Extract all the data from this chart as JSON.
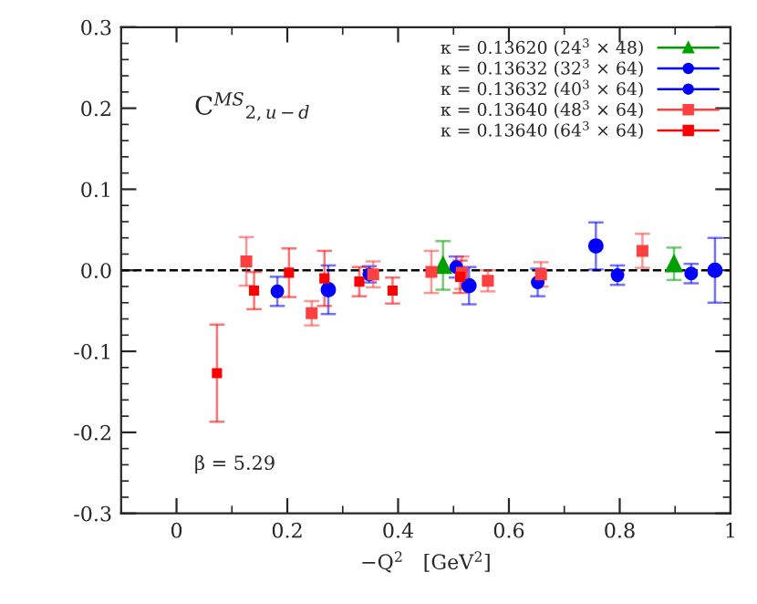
{
  "chart_data": {
    "type": "scatter",
    "xlabel": "−Q$^{2}$   [GeV$^{2}$]",
    "xlim": [
      -0.1,
      1
    ],
    "xticks": [
      0,
      0.2,
      0.4,
      0.6,
      0.8,
      1
    ],
    "ylim": [
      -0.3,
      0.3
    ],
    "yticks": [
      -0.3,
      -0.2,
      -0.1,
      {
        "value": 0,
        "label": "0.0"
      },
      0.1,
      0.2,
      0.3
    ],
    "grid": false,
    "legend": "top right",
    "ref_lines": [
      {
        "axis": "y",
        "value": 0,
        "color": "#000000",
        "line_style": "dashed"
      }
    ],
    "annotations": [
      "C$^{MS}$$_{2,u−d}$",
      "β = 5.29"
    ],
    "series": [
      {
        "name": "κ = 0.13620 (24$^{3}$ × 48)",
        "color": "#00a000",
        "marker": "triangle",
        "x": [
          0.481,
          0.898
        ],
        "values": [
          0.006,
          0.008
        ],
        "errors": [
          0.03,
          0.02
        ]
      },
      {
        "name": "κ = 0.13632 (32$^{3}$ × 64)",
        "color": "#0000ff",
        "marker": "circle",
        "x": [
          0.274,
          0.528,
          0.757,
          0.972
        ],
        "values": [
          -0.024,
          -0.019,
          0.03,
          0.0
        ],
        "errors": [
          0.03,
          0.023,
          0.029,
          0.04
        ]
      },
      {
        "name": "κ = 0.13632 (40$^{3}$ × 64)",
        "color": "#0000ff",
        "marker": "circle",
        "x": [
          0.182,
          0.348,
          0.505,
          0.652,
          0.796,
          0.929
        ],
        "values": [
          -0.026,
          -0.005,
          0.004,
          -0.015,
          -0.006,
          -0.004
        ],
        "errors": [
          0.018,
          0.01,
          0.013,
          0.017,
          0.012,
          0.012
        ]
      },
      {
        "name": "κ = 0.13640 (48$^{3}$ × 64)",
        "color": "#ff4040",
        "marker": "square",
        "x": [
          0.126,
          0.244,
          0.355,
          0.46,
          0.515,
          0.562,
          0.658,
          0.841
        ],
        "values": [
          0.011,
          -0.053,
          -0.005,
          -0.002,
          -0.003,
          -0.013,
          -0.005,
          0.024
        ],
        "errors": [
          0.03,
          0.015,
          0.016,
          0.026,
          0.02,
          0.013,
          0.015,
          0.021
        ]
      },
      {
        "name": "κ = 0.13640 (64$^{3}$ × 64)",
        "color": "#ff0000",
        "marker": "square",
        "x": [
          0.073,
          0.14,
          0.203,
          0.267,
          0.33,
          0.39,
          0.512
        ],
        "values": [
          -0.127,
          -0.025,
          -0.003,
          -0.01,
          -0.014,
          -0.025,
          -0.008
        ],
        "errors": [
          0.06,
          0.023,
          0.03,
          0.034,
          0.018,
          0.016,
          0.02
        ]
      }
    ]
  }
}
